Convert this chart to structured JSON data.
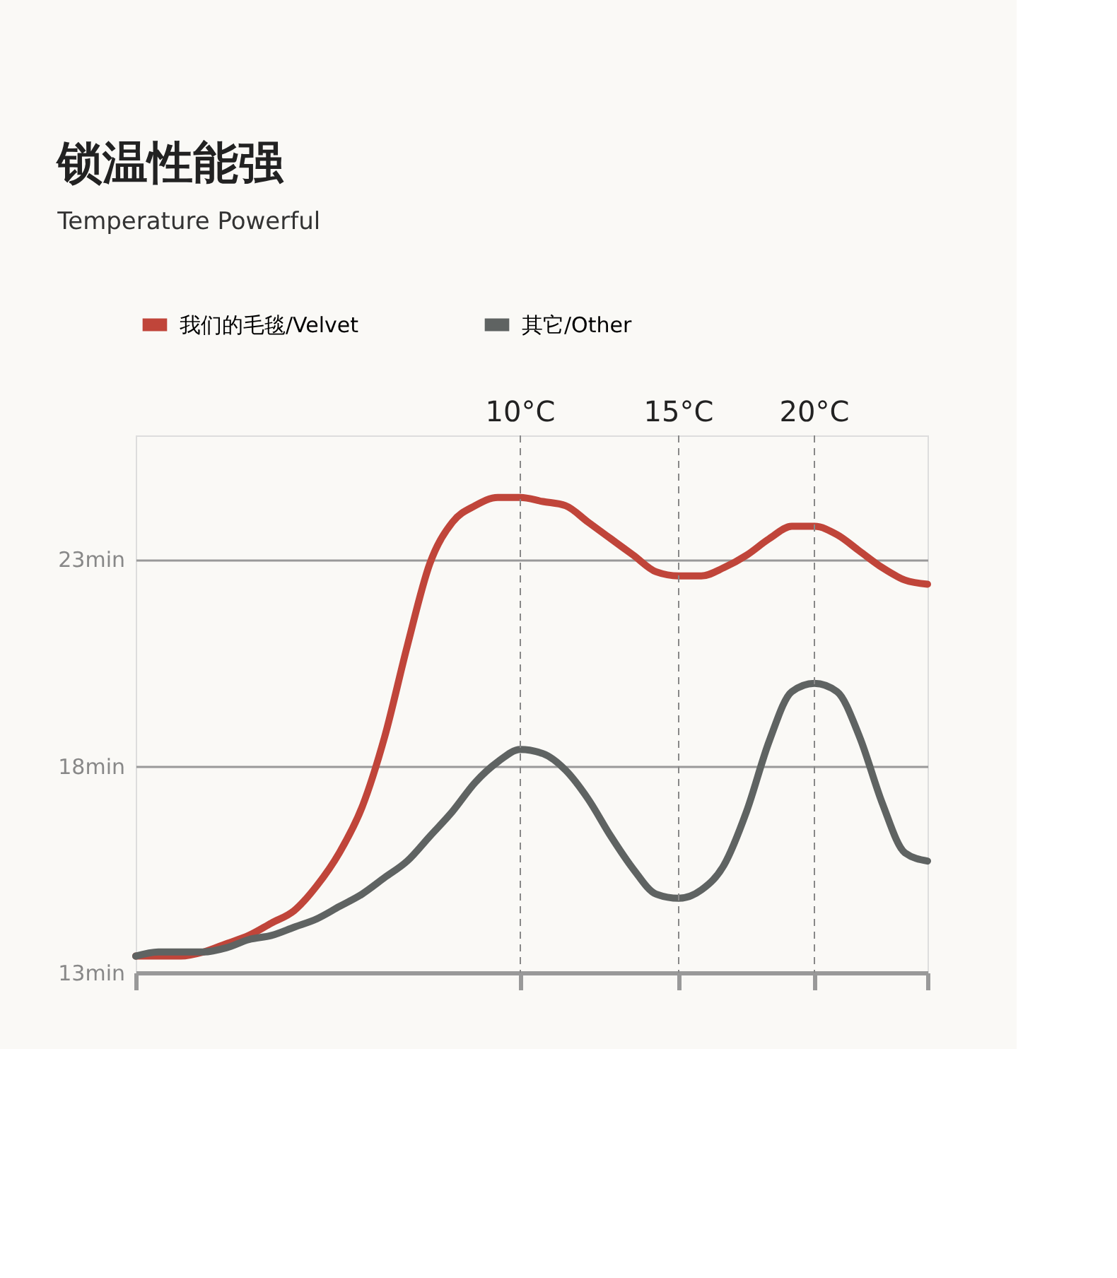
{
  "chart_data": {
    "type": "line",
    "title": "锁温性能强",
    "subtitle": "Temperature Powerful",
    "categories": [
      null,
      null,
      null,
      null,
      null,
      null,
      null,
      null,
      null,
      null,
      null,
      null,
      null,
      null,
      null,
      null,
      null,
      "10°C",
      null,
      null,
      null,
      null,
      null,
      null,
      "15°C",
      null,
      null,
      null,
      null,
      null,
      "20°C",
      null,
      null,
      null,
      null,
      null
    ],
    "series": [
      {
        "name": "我们的毛毯/Velvet",
        "color": "#c0453a",
        "values": [
          13.4,
          13.4,
          13.4,
          13.5,
          13.7,
          13.9,
          14.2,
          14.5,
          15.1,
          15.9,
          17.0,
          18.7,
          20.9,
          22.9,
          23.9,
          24.3,
          24.5,
          24.5,
          24.4,
          24.3,
          23.9,
          23.5,
          23.1,
          22.7,
          22.6,
          22.6,
          22.8,
          23.1,
          23.5,
          23.8,
          23.8,
          23.6,
          23.2,
          22.8,
          22.5,
          22.4
        ]
      },
      {
        "name": "其它/Other",
        "color": "#5f6362",
        "values": [
          13.4,
          13.5,
          13.5,
          13.5,
          13.6,
          13.8,
          13.9,
          14.1,
          14.3,
          14.6,
          14.9,
          15.3,
          15.7,
          16.3,
          16.9,
          17.6,
          18.1,
          18.4,
          18.3,
          17.9,
          17.2,
          16.3,
          15.5,
          14.9,
          14.8,
          15.0,
          15.6,
          16.9,
          18.6,
          19.8,
          20.0,
          19.8,
          18.7,
          17.1,
          15.9,
          15.7
        ]
      }
    ],
    "ylim": [
      13,
      26
    ],
    "yticks": [
      {
        "value": 13,
        "label": "13min"
      },
      {
        "value": 18,
        "label": "18min"
      },
      {
        "value": 23,
        "label": "23min"
      }
    ],
    "ref_lines": [
      {
        "axis": "x",
        "value": "10°C",
        "line_style": "dashed",
        "color": "#888888"
      },
      {
        "axis": "x",
        "value": "15°C",
        "line_style": "dashed",
        "color": "#888888"
      },
      {
        "axis": "x",
        "value": "20°C",
        "line_style": "dashed",
        "color": "#888888"
      }
    ],
    "grid": "y",
    "legend": "top",
    "tick_labels": "y",
    "marker": "none",
    "line_style": "solid"
  }
}
